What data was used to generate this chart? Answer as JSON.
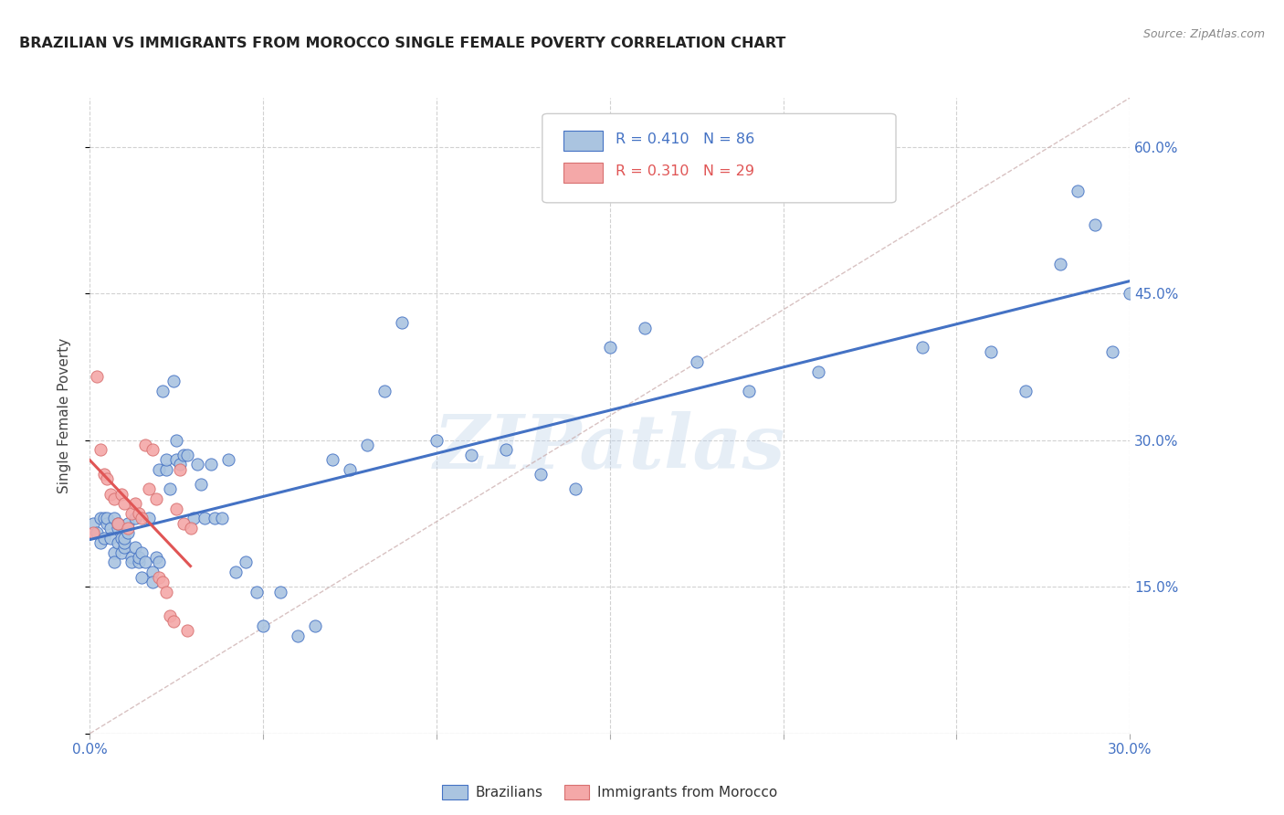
{
  "title": "BRAZILIAN VS IMMIGRANTS FROM MOROCCO SINGLE FEMALE POVERTY CORRELATION CHART",
  "source": "Source: ZipAtlas.com",
  "ylabel": "Single Female Poverty",
  "x_min": 0.0,
  "x_max": 0.3,
  "y_min": 0.0,
  "y_max": 0.65,
  "x_ticks": [
    0.0,
    0.05,
    0.1,
    0.15,
    0.2,
    0.25,
    0.3
  ],
  "y_ticks": [
    0.0,
    0.15,
    0.3,
    0.45,
    0.6
  ],
  "y_tick_labels_right": [
    "",
    "15.0%",
    "30.0%",
    "45.0%",
    "60.0%"
  ],
  "brazilian_color": "#aac4e0",
  "morocco_color": "#f4a8a8",
  "trendline_brazil_color": "#4472c4",
  "trendline_morocco_color": "#e05555",
  "diagonal_color": "#d4b0b0",
  "R_brazil": 0.41,
  "N_brazil": 86,
  "R_morocco": 0.31,
  "N_morocco": 29,
  "legend_label_brazil": "Brazilians",
  "legend_label_morocco": "Immigrants from Morocco",
  "watermark": "ZIPatlas",
  "brazil_x": [
    0.001,
    0.002,
    0.003,
    0.003,
    0.004,
    0.004,
    0.005,
    0.005,
    0.006,
    0.006,
    0.007,
    0.007,
    0.007,
    0.008,
    0.008,
    0.008,
    0.009,
    0.009,
    0.01,
    0.01,
    0.01,
    0.011,
    0.011,
    0.012,
    0.012,
    0.013,
    0.013,
    0.014,
    0.014,
    0.015,
    0.015,
    0.016,
    0.017,
    0.018,
    0.018,
    0.019,
    0.02,
    0.02,
    0.021,
    0.022,
    0.022,
    0.023,
    0.024,
    0.025,
    0.025,
    0.026,
    0.027,
    0.028,
    0.03,
    0.031,
    0.032,
    0.033,
    0.035,
    0.036,
    0.038,
    0.04,
    0.042,
    0.045,
    0.048,
    0.05,
    0.055,
    0.06,
    0.065,
    0.07,
    0.075,
    0.08,
    0.085,
    0.09,
    0.1,
    0.11,
    0.12,
    0.13,
    0.14,
    0.15,
    0.16,
    0.175,
    0.19,
    0.21,
    0.24,
    0.26,
    0.27,
    0.28,
    0.285,
    0.29,
    0.295,
    0.3
  ],
  "brazil_y": [
    0.215,
    0.205,
    0.22,
    0.195,
    0.22,
    0.2,
    0.215,
    0.22,
    0.21,
    0.2,
    0.185,
    0.175,
    0.22,
    0.195,
    0.21,
    0.215,
    0.2,
    0.185,
    0.19,
    0.195,
    0.2,
    0.205,
    0.215,
    0.18,
    0.175,
    0.19,
    0.22,
    0.175,
    0.18,
    0.185,
    0.16,
    0.175,
    0.22,
    0.165,
    0.155,
    0.18,
    0.175,
    0.27,
    0.35,
    0.27,
    0.28,
    0.25,
    0.36,
    0.3,
    0.28,
    0.275,
    0.285,
    0.285,
    0.22,
    0.275,
    0.255,
    0.22,
    0.275,
    0.22,
    0.22,
    0.28,
    0.165,
    0.175,
    0.145,
    0.11,
    0.145,
    0.1,
    0.11,
    0.28,
    0.27,
    0.295,
    0.35,
    0.42,
    0.3,
    0.285,
    0.29,
    0.265,
    0.25,
    0.395,
    0.415,
    0.38,
    0.35,
    0.37,
    0.395,
    0.39,
    0.35,
    0.48,
    0.555,
    0.52,
    0.39,
    0.45
  ],
  "morocco_x": [
    0.001,
    0.002,
    0.003,
    0.004,
    0.005,
    0.006,
    0.007,
    0.008,
    0.009,
    0.01,
    0.011,
    0.012,
    0.013,
    0.014,
    0.015,
    0.016,
    0.017,
    0.018,
    0.019,
    0.02,
    0.021,
    0.022,
    0.023,
    0.024,
    0.025,
    0.026,
    0.027,
    0.028,
    0.029
  ],
  "morocco_y": [
    0.205,
    0.365,
    0.29,
    0.265,
    0.26,
    0.245,
    0.24,
    0.215,
    0.245,
    0.235,
    0.21,
    0.225,
    0.235,
    0.225,
    0.22,
    0.295,
    0.25,
    0.29,
    0.24,
    0.16,
    0.155,
    0.145,
    0.12,
    0.115,
    0.23,
    0.27,
    0.215,
    0.105,
    0.21
  ]
}
